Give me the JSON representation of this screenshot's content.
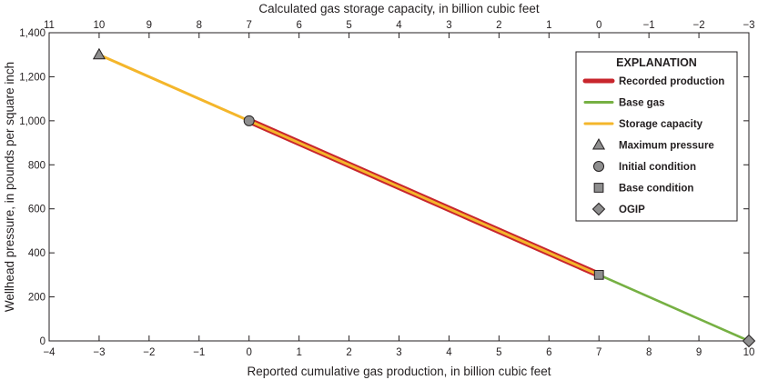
{
  "chart_data": {
    "type": "line",
    "x_axis_bottom": {
      "label": "Reported cumulative gas production, in billion cubic feet",
      "range": [
        -4,
        10
      ],
      "ticks": [
        -4,
        -3,
        -2,
        -1,
        0,
        1,
        2,
        3,
        4,
        5,
        6,
        7,
        8,
        9,
        10
      ],
      "tick_labels": [
        "−4",
        "−3",
        "−2",
        "−1",
        "0",
        "1",
        "2",
        "3",
        "4",
        "5",
        "6",
        "7",
        "8",
        "9",
        "10"
      ]
    },
    "x_axis_top": {
      "label": "Calculated gas storage capacity, in billion cubic feet",
      "range": [
        11,
        -3
      ],
      "ticks": [
        11,
        10,
        9,
        8,
        7,
        6,
        5,
        4,
        3,
        2,
        1,
        0,
        -1,
        -2,
        -3
      ],
      "tick_labels": [
        "11",
        "10",
        "9",
        "8",
        "7",
        "6",
        "5",
        "4",
        "3",
        "2",
        "1",
        "0",
        "−1",
        "−2",
        "−3"
      ]
    },
    "y_axis": {
      "label": "Wellhead pressure, in pounds per square inch",
      "range": [
        0,
        1400
      ],
      "ticks": [
        0,
        200,
        400,
        600,
        800,
        1000,
        1200,
        1400
      ],
      "tick_labels": [
        "0",
        "200",
        "400",
        "600",
        "800",
        "1,000",
        "1,200",
        "1,400"
      ]
    },
    "series": [
      {
        "name": "Recorded production",
        "color": "#c8252c",
        "points": [
          [
            0,
            1000
          ],
          [
            7,
            300
          ]
        ]
      },
      {
        "name": "Base gas",
        "color": "#76b043",
        "points": [
          [
            7,
            300
          ],
          [
            10,
            0
          ]
        ]
      },
      {
        "name": "Storage capacity",
        "color": "#f4b62b",
        "points": [
          [
            -3,
            1300
          ],
          [
            7,
            300
          ]
        ]
      }
    ],
    "markers": [
      {
        "name": "Maximum pressure",
        "shape": "triangle",
        "x": -3,
        "y": 1300
      },
      {
        "name": "Initial condition",
        "shape": "circle",
        "x": 0,
        "y": 1000
      },
      {
        "name": "Base condition",
        "shape": "square",
        "x": 7,
        "y": 300
      },
      {
        "name": "OGIP",
        "shape": "diamond",
        "x": 10,
        "y": 0
      }
    ],
    "marker_fill": "#8e8e8e",
    "legend": {
      "title": "EXPLANATION",
      "placement": "top-right",
      "items": [
        {
          "label": "Recorded production",
          "kind": "line",
          "color": "#c8252c"
        },
        {
          "label": "Base gas",
          "kind": "line",
          "color": "#76b043"
        },
        {
          "label": "Storage capacity",
          "kind": "line",
          "color": "#f4b62b"
        },
        {
          "label": "Maximum pressure",
          "kind": "triangle"
        },
        {
          "label": "Initial condition",
          "kind": "circle"
        },
        {
          "label": "Base condition",
          "kind": "square"
        },
        {
          "label": "OGIP",
          "kind": "diamond"
        }
      ]
    },
    "grid": false
  }
}
